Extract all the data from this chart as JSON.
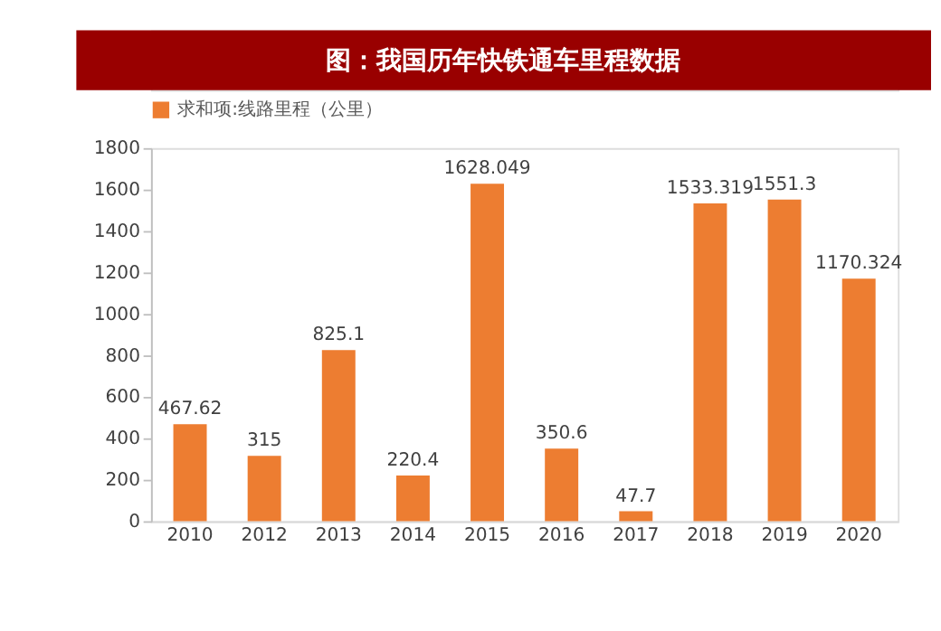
{
  "chart_data": {
    "type": "bar",
    "title": "图：我国历年快铁通车里程数据",
    "categories": [
      "2010",
      "2012",
      "2013",
      "2014",
      "2015",
      "2016",
      "2017",
      "2018",
      "2019",
      "2020"
    ],
    "series": [
      {
        "name": "求和项:线路里程（公里）",
        "color": "#ed7d31",
        "values": [
          467.62,
          315,
          825.1,
          220.4,
          1628.049,
          350.6,
          47.7,
          1533.319,
          1551.3,
          1170.324
        ]
      }
    ],
    "ylim": [
      0,
      1800
    ],
    "yticks": [
      0,
      200,
      400,
      600,
      800,
      1000,
      1200,
      1400,
      1600,
      1800
    ],
    "data_labels": true,
    "grid": false,
    "legend": "top"
  }
}
